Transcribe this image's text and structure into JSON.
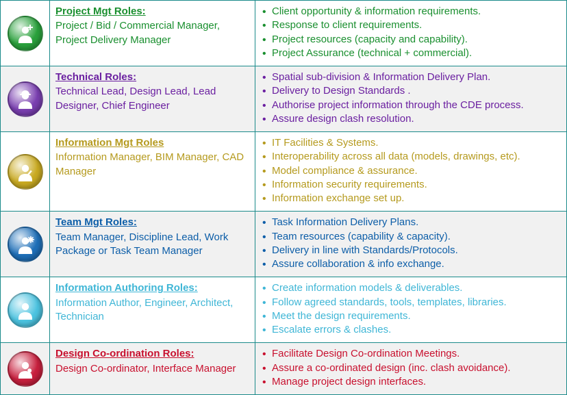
{
  "rows": [
    {
      "title": "Project Mgt Roles:",
      "subtitle": "Project  / Bid / Commercial Manager, Project Delivery Manager",
      "bullets": [
        "Client opportunity & information requirements.",
        "Response to client requirements.",
        "Project resources (capacity and capability).",
        "Project Assurance (technical + commercial)."
      ],
      "color": "#1a8f2f",
      "badge_color": "#2aa13c",
      "alt": false,
      "icon": "person-plus"
    },
    {
      "title": "Technical  Roles:",
      "subtitle": "Technical Lead, Design Lead, Lead Designer, Chief Engineer",
      "bullets": [
        "Spatial sub-division & Information Delivery Plan.",
        "Delivery to Design Standards .",
        "Authorise project information through the CDE process.",
        "Assure design clash resolution."
      ],
      "color": "#6a1fa0",
      "badge_color": "#7a3fb0",
      "alt": true,
      "icon": "person-hat"
    },
    {
      "title": "Information Mgt Roles",
      "subtitle": "Information Manager, BIM Manager, CAD Manager",
      "bullets": [
        "IT Facilities & Systems.",
        "Interoperability across all data (models, drawings, etc).",
        "Model compliance & assurance.",
        "Information security requirements.",
        "Information exchange  set up."
      ],
      "color": "#b59a1e",
      "badge_color": "#c9aa22",
      "alt": false,
      "icon": "person-edit"
    },
    {
      "title": "Team Mgt Roles:",
      "subtitle": "Team Manager, Discipline Lead, Work Package or  Task Team Manager",
      "bullets": [
        "Task Information Delivery Plans.",
        "Team  resources (capability & capacity).",
        "Delivery in line with Standards/Protocols.",
        "Assure collaboration & info exchange."
      ],
      "color": "#0d5ea8",
      "badge_color": "#1e6fb8",
      "alt": true,
      "icon": "person-gear"
    },
    {
      "title": "Information Authoring Roles:",
      "subtitle": "Information Author, Engineer, Architect, Technician",
      "bullets": [
        "Create information models & deliverables.",
        "Follow agreed  standards, tools, templates, libraries.",
        "Meet the design requirements.",
        "Escalate errors & clashes."
      ],
      "color": "#3fb6d6",
      "badge_color": "#4cc3e0",
      "alt": false,
      "icon": "person"
    },
    {
      "title": "Design Co-ordination Roles:",
      "subtitle": "Design Co-ordinator, Interface Manager",
      "bullets": [
        "Facilitate Design Co-ordination Meetings.",
        "Assure a co-ordinated design (inc. clash avoidance).",
        "Manage project design interfaces."
      ],
      "color": "#c8102e",
      "badge_color": "#c8203e",
      "alt": true,
      "icon": "person-wrench"
    }
  ]
}
